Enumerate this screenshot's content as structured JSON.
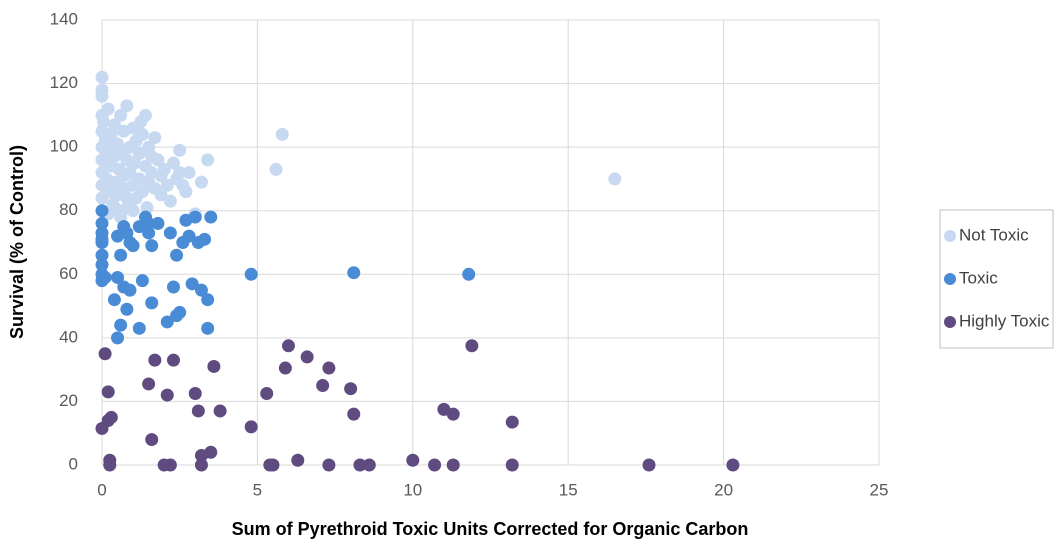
{
  "chart_data": {
    "type": "scatter",
    "x_label": "Sum of Pyrethroid Toxic Units Corrected for Organic Carbon",
    "y_label": "Survival (% of Control)",
    "xlim": [
      0,
      25
    ],
    "xticks": [
      0,
      5,
      10,
      15,
      20,
      25
    ],
    "ylim": [
      0,
      140
    ],
    "yticks": [
      0,
      20,
      40,
      60,
      80,
      100,
      120,
      140
    ],
    "grid": true,
    "legend": "right",
    "series": [
      {
        "name": "Not Toxic",
        "color": "#c6d9f1",
        "x": [
          0,
          0,
          0,
          0,
          0,
          0,
          0,
          0,
          0,
          0,
          0.05,
          0.1,
          0.1,
          0.15,
          0.2,
          0.2,
          0.25,
          0.3,
          0.3,
          0.35,
          0.4,
          0.4,
          0.45,
          0.5,
          0.5,
          0.55,
          0.6,
          0.6,
          0.65,
          0.7,
          0.7,
          0.75,
          0.8,
          0.8,
          0.85,
          0.9,
          0.9,
          1.0,
          1.0,
          1.05,
          1.1,
          1.1,
          1.2,
          1.2,
          1.25,
          1.3,
          1.3,
          1.4,
          1.4,
          1.45,
          1.5,
          1.5,
          1.6,
          1.6,
          1.7,
          1.7,
          1.8,
          1.9,
          1.9,
          2.0,
          2.1,
          2.2,
          2.3,
          2.4,
          2.5,
          2.5,
          2.6,
          2.7,
          2.8,
          3.0,
          3.2,
          3.4,
          5.6,
          5.8,
          16.5,
          0.2,
          0.4,
          0.6,
          0.8,
          1.0
        ],
        "values": [
          122,
          118,
          116,
          110,
          105,
          100,
          96,
          92,
          88,
          84,
          108,
          102,
          95,
          90,
          112,
          99,
          86,
          104,
          94,
          82,
          107,
          97,
          89,
          101,
          85,
          93,
          110,
          98,
          80,
          105,
          91,
          87,
          113,
          96,
          83,
          100,
          92,
          106,
          88,
          95,
          102,
          84,
          98,
          90,
          108,
          104,
          86,
          110,
          94,
          81,
          100,
          89,
          97,
          92,
          87,
          103,
          96,
          91,
          85,
          93,
          88,
          83,
          95,
          90,
          99,
          92,
          88,
          86,
          92,
          79,
          89,
          96,
          93,
          104,
          90,
          79,
          81,
          78,
          84,
          80
        ]
      },
      {
        "name": "Toxic",
        "color": "#4a8bd6",
        "x": [
          0,
          0,
          0,
          0,
          0,
          0,
          0,
          0,
          0,
          0.1,
          0.5,
          0.4,
          0.5,
          0.6,
          0.7,
          0.8,
          0.9,
          0.6,
          0.7,
          0.8,
          0.9,
          1.0,
          0.5,
          1.2,
          1.3,
          1.2,
          1.4,
          1.5,
          1.5,
          1.6,
          1.6,
          1.8,
          2.2,
          2.1,
          2.3,
          2.4,
          2.4,
          2.5,
          2.6,
          2.7,
          2.8,
          2.9,
          3.0,
          3.1,
          3.2,
          3.3,
          3.4,
          3.4,
          3.5,
          4.8,
          8.1,
          11.8
        ],
        "values": [
          80,
          76,
          73,
          71,
          70,
          66,
          63,
          60,
          58,
          59,
          59,
          52,
          40,
          44,
          56,
          49,
          55,
          66,
          75,
          73,
          70,
          69,
          72,
          43,
          58,
          75,
          78,
          76,
          73,
          69,
          51,
          76,
          73,
          45,
          56,
          66,
          47,
          48,
          70,
          77,
          72,
          57,
          78,
          70,
          55,
          71,
          43,
          52,
          78,
          60,
          60.5,
          60
        ]
      },
      {
        "name": "Highly Toxic",
        "color": "#5f4b7f",
        "x": [
          0,
          0.1,
          0.2,
          0.2,
          0.3,
          0.25,
          0.25,
          1.5,
          1.6,
          1.7,
          2.1,
          2.0,
          2.2,
          2.3,
          3.0,
          3.1,
          3.2,
          3.2,
          3.5,
          3.6,
          3.8,
          4.8,
          5.3,
          5.4,
          5.5,
          5.9,
          6.0,
          6.3,
          6.6,
          7.1,
          7.3,
          7.3,
          8.0,
          8.1,
          8.3,
          8.6,
          10.0,
          10.7,
          11.0,
          11.3,
          11.3,
          11.9,
          13.2,
          13.2,
          17.6,
          20.3
        ],
        "values": [
          11.5,
          35,
          23,
          14,
          15,
          1.5,
          0,
          25.5,
          8,
          33,
          22,
          0,
          0,
          33,
          22.5,
          17,
          3,
          0,
          4,
          31,
          17,
          12,
          22.5,
          0,
          0,
          30.5,
          37.5,
          1.5,
          34,
          25,
          30.5,
          0,
          24,
          16,
          0,
          0,
          1.5,
          0,
          17.5,
          16,
          0,
          37.5,
          13.5,
          0,
          0,
          0
        ]
      }
    ]
  }
}
